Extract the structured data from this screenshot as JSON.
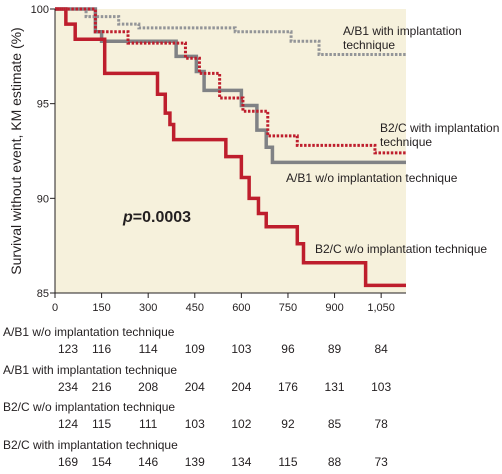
{
  "chart_data": {
    "type": "line",
    "subtype": "step",
    "title": "",
    "xlabel": "",
    "ylabel": "Survival without event, KM estimate (%)",
    "xlim": [
      0,
      1130
    ],
    "ylim": [
      85,
      100
    ],
    "x_ticks": [
      0,
      150,
      300,
      450,
      600,
      750,
      900,
      1050
    ],
    "x_tick_labels": [
      "0",
      "150",
      "300",
      "450",
      "600",
      "750",
      "900",
      "1,050"
    ],
    "y_ticks": [
      85,
      90,
      95,
      100
    ],
    "y_tick_labels": [
      "85",
      "90",
      "95",
      "100"
    ],
    "grid": false,
    "legend": "none",
    "annotation": {
      "p_symbol": "p",
      "p_rest": "=0.0003"
    },
    "series": [
      {
        "name": "A/B1 with implantation technique",
        "color": "#939598",
        "dash": "dotted",
        "points": [
          [
            0,
            100
          ],
          [
            100,
            100
          ],
          [
            100,
            99.6
          ],
          [
            205,
            99.6
          ],
          [
            205,
            99.2
          ],
          [
            270,
            99.2
          ],
          [
            270,
            99.0
          ],
          [
            580,
            99.0
          ],
          [
            580,
            98.8
          ],
          [
            760,
            98.8
          ],
          [
            760,
            98.3
          ],
          [
            850,
            98.3
          ],
          [
            850,
            97.6
          ],
          [
            1130,
            97.6
          ]
        ]
      },
      {
        "name": "B2/C with implantation technique",
        "color": "#be1e2d",
        "dash": "dotted",
        "points": [
          [
            0,
            100
          ],
          [
            130,
            100
          ],
          [
            130,
            98.8
          ],
          [
            235,
            98.8
          ],
          [
            235,
            98.2
          ],
          [
            420,
            98.2
          ],
          [
            420,
            97.4
          ],
          [
            465,
            97.4
          ],
          [
            465,
            96.6
          ],
          [
            530,
            96.6
          ],
          [
            530,
            95.3
          ],
          [
            605,
            95.3
          ],
          [
            605,
            94.6
          ],
          [
            685,
            94.6
          ],
          [
            685,
            93.3
          ],
          [
            780,
            93.3
          ],
          [
            780,
            92.8
          ],
          [
            1030,
            92.8
          ],
          [
            1030,
            92.4
          ],
          [
            1130,
            92.4
          ]
        ]
      },
      {
        "name": "A/B1 w/o implantation technique",
        "color": "#808285",
        "dash": "solid",
        "points": [
          [
            0,
            100
          ],
          [
            130,
            100
          ],
          [
            130,
            98.8
          ],
          [
            150,
            98.8
          ],
          [
            150,
            98.3
          ],
          [
            390,
            98.3
          ],
          [
            390,
            97.5
          ],
          [
            455,
            97.5
          ],
          [
            455,
            96.7
          ],
          [
            480,
            96.7
          ],
          [
            480,
            95.7
          ],
          [
            600,
            95.7
          ],
          [
            600,
            94.9
          ],
          [
            650,
            94.9
          ],
          [
            650,
            93.6
          ],
          [
            680,
            93.6
          ],
          [
            680,
            92.7
          ],
          [
            700,
            92.7
          ],
          [
            700,
            91.9
          ],
          [
            1130,
            91.9
          ]
        ]
      },
      {
        "name": "B2/C w/o implantation technique",
        "color": "#be1e2d",
        "dash": "solid",
        "points": [
          [
            0,
            100
          ],
          [
            35,
            100
          ],
          [
            35,
            99.2
          ],
          [
            65,
            99.2
          ],
          [
            65,
            98.4
          ],
          [
            160,
            98.4
          ],
          [
            160,
            96.6
          ],
          [
            330,
            96.6
          ],
          [
            330,
            95.5
          ],
          [
            355,
            95.5
          ],
          [
            355,
            94.5
          ],
          [
            370,
            94.5
          ],
          [
            370,
            93.9
          ],
          [
            382,
            93.9
          ],
          [
            382,
            93.1
          ],
          [
            550,
            93.1
          ],
          [
            550,
            92.2
          ],
          [
            600,
            92.2
          ],
          [
            600,
            91.1
          ],
          [
            625,
            91.1
          ],
          [
            625,
            90.0
          ],
          [
            655,
            90.0
          ],
          [
            655,
            89.2
          ],
          [
            680,
            89.2
          ],
          [
            680,
            88.5
          ],
          [
            780,
            88.5
          ],
          [
            780,
            87.6
          ],
          [
            800,
            87.6
          ],
          [
            800,
            86.6
          ],
          [
            1000,
            86.6
          ],
          [
            1000,
            85.4
          ],
          [
            1130,
            85.4
          ]
        ]
      }
    ],
    "labels": [
      "A/B1 with implantation technique",
      "B2/C with implantation technique",
      "A/B1 w/o implantation technique",
      "B2/C w/o implantation technique"
    ]
  },
  "risk_table": {
    "columns": [
      "0",
      "150",
      "300",
      "450",
      "600",
      "750",
      "900",
      "1,050"
    ],
    "rows": [
      {
        "name": "A/B1 w/o implantation technique",
        "values": [
          "123",
          "116",
          "114",
          "109",
          "103",
          "96",
          "89",
          "84"
        ]
      },
      {
        "name": "A/B1 with implantation technique",
        "values": [
          "234",
          "216",
          "208",
          "204",
          "204",
          "176",
          "131",
          "103"
        ]
      },
      {
        "name": "B2/C w/o implantation technique",
        "values": [
          "124",
          "115",
          "111",
          "103",
          "102",
          "92",
          "85",
          "78"
        ]
      },
      {
        "name": "B2/C with implantation technique",
        "values": [
          "169",
          "154",
          "146",
          "139",
          "134",
          "115",
          "88",
          "73"
        ]
      }
    ]
  }
}
